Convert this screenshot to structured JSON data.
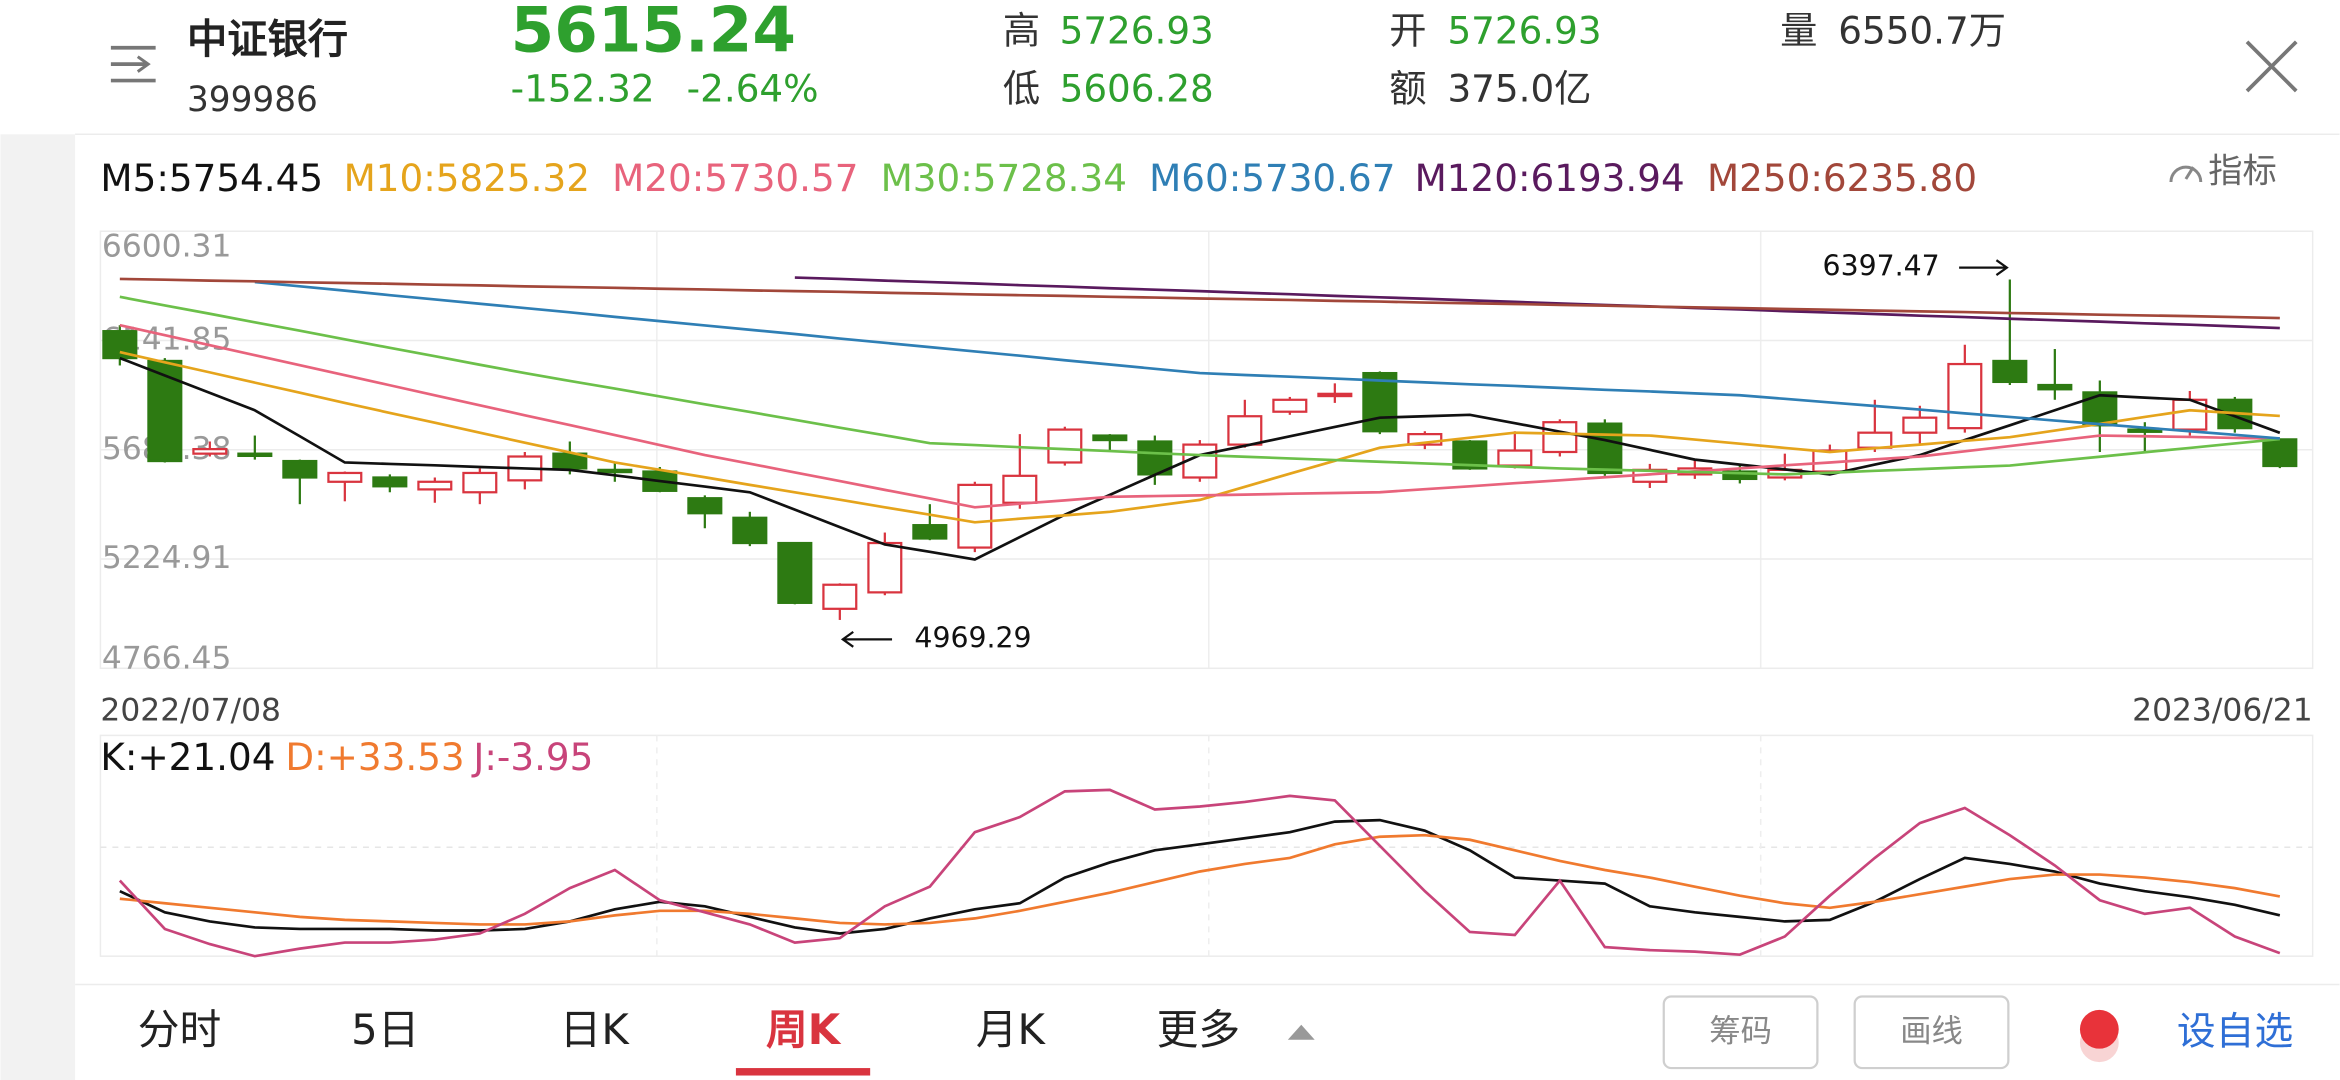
{
  "header": {
    "name": "中证银行",
    "code": "399986",
    "price": "5615.24",
    "change": "-152.32",
    "change_pct": "-2.64%",
    "high_label": "高",
    "high": "5726.93",
    "low_label": "低",
    "low": "5606.28",
    "open_label": "开",
    "open": "5726.93",
    "amount_label": "额",
    "amount": "375.0亿",
    "volume_label": "量",
    "volume": "6550.7万"
  },
  "indicator_button": "指标",
  "chart_data": [
    {
      "type": "candlestick",
      "categories": [
        "2022/07/08",
        null,
        null,
        null,
        null,
        null,
        null,
        null,
        null,
        null,
        null,
        null,
        null,
        null,
        null,
        null,
        null,
        null,
        null,
        null,
        null,
        null,
        null,
        null,
        null,
        null,
        null,
        null,
        null,
        null,
        null,
        null,
        null,
        null,
        null,
        null,
        null,
        null,
        null,
        null,
        null,
        null,
        null,
        null,
        null,
        null,
        null,
        null,
        "2023/06/21"
      ],
      "candles": {
        "open": [
          6181,
          6056,
          5667,
          5667,
          5636,
          5549,
          5567,
          5517,
          5505,
          5555,
          5667,
          5599,
          5592,
          5480,
          5398,
          5292,
          5016,
          5085,
          5367,
          5273,
          5461,
          5630,
          5743,
          5718,
          5567,
          5705,
          5843,
          5912,
          6005,
          5705,
          5718,
          5617,
          5674,
          5793,
          5549,
          5580,
          5592,
          5567,
          5592,
          5692,
          5755,
          5774,
          6056,
          5955,
          5924,
          5768,
          5768,
          5893,
          5726.93
        ],
        "close": [
          6068,
          5636,
          5686,
          5661,
          5567,
          5586,
          5530,
          5549,
          5586,
          5655,
          5605,
          5592,
          5511,
          5417,
          5292,
          5041,
          5117,
          5292,
          5311,
          5536,
          5574,
          5768,
          5724,
          5580,
          5705,
          5824,
          5893,
          5918,
          5761,
          5749,
          5605,
          5680,
          5799,
          5586,
          5599,
          5605,
          5561,
          5599,
          5680,
          5755,
          5818,
          6043,
          5968,
          5937,
          5786,
          5761,
          5893,
          5774,
          5615.24
        ],
        "high": [
          6206,
          6068,
          5718,
          5743,
          5642,
          5592,
          5580,
          5567,
          5605,
          5674,
          5718,
          5630,
          5611,
          5492,
          5423,
          5292,
          5123,
          5336,
          5455,
          5549,
          5749,
          5780,
          5749,
          5743,
          5724,
          5893,
          5905,
          5962,
          6012,
          5761,
          5724,
          5761,
          5811,
          5811,
          5624,
          5642,
          5617,
          5667,
          5705,
          5893,
          5868,
          6124,
          6397.47,
          6106,
          5974,
          5799,
          5930,
          5905,
          5726.93
        ],
        "low": [
          6037,
          5630,
          5655,
          5642,
          5455,
          5467,
          5505,
          5461,
          5455,
          5517,
          5580,
          5549,
          5505,
          5354,
          5279,
          5035,
          4969.29,
          5073,
          5304,
          5254,
          5436,
          5617,
          5674,
          5536,
          5549,
          5692,
          5830,
          5880,
          5749,
          5686,
          5599,
          5605,
          5655,
          5574,
          5523,
          5561,
          5542,
          5555,
          5580,
          5674,
          5705,
          5755,
          5955,
          5893,
          5674,
          5674,
          5743,
          5755,
          5606.28
        ]
      },
      "up_color": "#d9343f",
      "down_color": "#2d7a12",
      "ylim": [
        4766.45,
        6600.31
      ],
      "yticks": [
        6600.31,
        6141.85,
        5683.38,
        5224.91,
        4766.45
      ],
      "grid": true,
      "high_label": "6397.47",
      "low_label": "4969.29",
      "series": [
        {
          "label": "M5:5754.45",
          "color": "#111111",
          "values": [
            6068,
            5995,
            5922,
            5849,
            5740,
            5630,
            5624,
            5618,
            5611,
            5605,
            5599,
            5576,
            5552,
            5529,
            5505,
            5432,
            5359,
            5286,
            5255,
            5223,
            5317,
            5411,
            5494,
            5578,
            5661,
            5700,
            5740,
            5779,
            5818,
            5824,
            5830,
            5795,
            5759,
            5724,
            5683,
            5642,
            5621,
            5601,
            5580,
            5621,
            5661,
            5724,
            5786,
            5849,
            5912,
            5902,
            5893,
            5824,
            5754.45
          ]
        },
        {
          "label": "M10:5825.32",
          "color": "#e5a41c",
          "values": [
            6093,
            6050,
            6008,
            5965,
            5923,
            5880,
            5838,
            5797,
            5755,
            5713,
            5672,
            5630,
            5599,
            5568,
            5536,
            5505,
            5474,
            5442,
            5411,
            5379,
            5394,
            5408,
            5423,
            5448,
            5473,
            5528,
            5583,
            5637,
            5692,
            5713,
            5734,
            5755,
            5751,
            5747,
            5743,
            5726,
            5709,
            5691,
            5674,
            5690,
            5705,
            5721,
            5736,
            5764,
            5792,
            5821,
            5849,
            5837,
            5825.32
          ]
        },
        {
          "label": "M20:5730.57",
          "color": "#e8637c",
          "values": [
            6206,
            6164,
            6122,
            6080,
            6038,
            5996,
            5954,
            5912,
            5870,
            5828,
            5787,
            5745,
            5703,
            5661,
            5625,
            5588,
            5552,
            5515,
            5479,
            5442,
            5457,
            5471,
            5486,
            5489,
            5492,
            5495,
            5499,
            5502,
            5505,
            5518,
            5530,
            5543,
            5555,
            5568,
            5580,
            5593,
            5605,
            5618,
            5630,
            5643,
            5655,
            5677,
            5699,
            5721,
            5743,
            5740,
            5737,
            5733,
            5730.57
          ]
        },
        {
          "label": "M30:5728.34",
          "color": "#6cc04a",
          "values": [
            6325,
            6289,
            6254,
            6218,
            6183,
            6147,
            6111,
            6076,
            6040,
            6005,
            5972,
            5940,
            5907,
            5874,
            5842,
            5809,
            5776,
            5744,
            5711,
            5703,
            5694,
            5686,
            5678,
            5669,
            5661,
            5654,
            5647,
            5640,
            5633,
            5626,
            5619,
            5612,
            5605,
            5600,
            5595,
            5590,
            5585,
            5580,
            5587,
            5595,
            5602,
            5610,
            5617,
            5636,
            5654,
            5673,
            5691,
            5710,
            5728.34
          ]
        },
        {
          "label": "M60:5730.67",
          "color": "#2f7fb5",
          "values": [
            null,
            null,
            null,
            6387,
            6369,
            6351,
            6332,
            6314,
            6296,
            6278,
            6260,
            6241,
            6223,
            6205,
            6187,
            6169,
            6150,
            6132,
            6114,
            6096,
            6078,
            6059,
            6041,
            6023,
            6005,
            5997,
            5990,
            5982,
            5974,
            5966,
            5958,
            5951,
            5943,
            5935,
            5928,
            5920,
            5912,
            5897,
            5882,
            5867,
            5852,
            5836,
            5821,
            5806,
            5791,
            5776,
            5761,
            5746,
            5730.67
          ]
        },
        {
          "label": "M120:6193.94",
          "color": "#5a1a5e",
          "values": [
            null,
            null,
            null,
            null,
            null,
            null,
            null,
            null,
            null,
            null,
            null,
            null,
            null,
            null,
            null,
            6406,
            6400,
            6393,
            6387,
            6381,
            6374,
            6368,
            6361,
            6355,
            6349,
            6342,
            6336,
            6329,
            6323,
            6317,
            6310,
            6304,
            6297,
            6291,
            6285,
            6278,
            6272,
            6265,
            6259,
            6253,
            6246,
            6240,
            6233,
            6227,
            6221,
            6214,
            6208,
            6201,
            6193.94
          ]
        },
        {
          "label": "M250:6235.80",
          "color": "#a2473a",
          "values": [
            6400,
            6397,
            6393,
            6390,
            6386,
            6383,
            6380,
            6376,
            6373,
            6369,
            6366,
            6363,
            6359,
            6356,
            6352,
            6349,
            6346,
            6342,
            6339,
            6335,
            6332,
            6329,
            6325,
            6322,
            6318,
            6315,
            6312,
            6308,
            6305,
            6301,
            6298,
            6295,
            6291,
            6288,
            6284,
            6281,
            6278,
            6274,
            6271,
            6267,
            6264,
            6261,
            6257,
            6254,
            6250,
            6247,
            6244,
            6240,
            6235.8
          ]
        }
      ]
    },
    {
      "type": "line",
      "ylim": [
        -6,
        140
      ],
      "series": [
        {
          "label": "K:+21.04",
          "color": "#111111",
          "values": [
            37,
            23,
            17,
            13,
            12,
            12,
            12,
            11,
            11,
            12,
            17,
            25,
            30,
            27,
            20,
            13,
            9,
            12,
            19,
            25,
            29,
            46,
            56,
            64,
            68,
            72,
            76,
            83,
            84,
            77,
            64,
            46,
            44,
            42,
            27,
            23,
            20,
            17,
            18,
            30,
            45,
            59,
            55,
            50,
            42,
            37,
            33,
            28,
            21.04
          ]
        },
        {
          "label": "D:+33.53",
          "color": "#f07a2f",
          "values": [
            32,
            29,
            26,
            23,
            20,
            18,
            17,
            16,
            15,
            15,
            17,
            21,
            24,
            24,
            22,
            19,
            16,
            15,
            16,
            19,
            24,
            30,
            36,
            43,
            50,
            55,
            59,
            68,
            73,
            74,
            71,
            64,
            57,
            51,
            46,
            40,
            34,
            29,
            26,
            30,
            35,
            40,
            45,
            48,
            48,
            46,
            43,
            39,
            33.53
          ]
        },
        {
          "label": "J:-3.95",
          "color": "#c8447a",
          "values": [
            44,
            12,
            2,
            -6,
            -1,
            3,
            3,
            5,
            9,
            22,
            39,
            51,
            31,
            23,
            15,
            3,
            6,
            27,
            40,
            76,
            86,
            103,
            104,
            91,
            93,
            96,
            100,
            97,
            67,
            37,
            10,
            8,
            44,
            0,
            -2,
            -3,
            -5,
            7,
            34,
            59,
            82,
            92,
            74,
            54,
            31,
            22,
            26,
            7,
            -3.95
          ]
        }
      ]
    }
  ],
  "tabs": [
    "分时",
    "5日",
    "日K",
    "周K",
    "月K",
    "更多"
  ],
  "selected_tab": 3,
  "buttons": [
    "筹码",
    "画线"
  ],
  "watchlist_button": "设自选"
}
